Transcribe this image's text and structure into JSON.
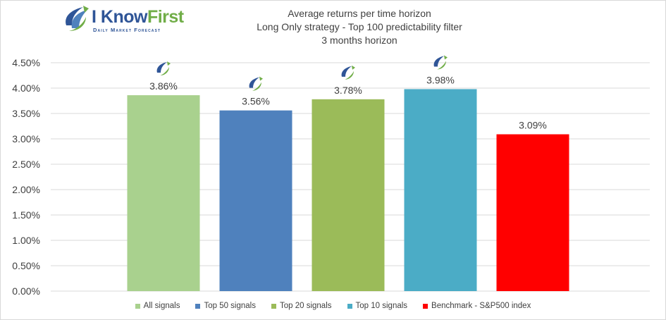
{
  "logo": {
    "text_a": "I Know",
    "text_b": "First",
    "tagline": "Daily Market Forecast"
  },
  "chart_data": {
    "type": "bar",
    "title": "Average returns per time horizon",
    "subtitle": "Long Only strategy - Top 100 predictability filter",
    "subtitle2": "3 months horizon",
    "categories": [
      "All signals",
      "Top 50 signals",
      "Top 20 signals",
      "Top 10 signals",
      "Benchmark - S&P500 index"
    ],
    "values": [
      3.86,
      3.56,
      3.78,
      3.98,
      3.09
    ],
    "value_labels": [
      "3.86%",
      "3.56%",
      "3.78%",
      "3.98%",
      "3.09%"
    ],
    "colors": [
      "#a9d18e",
      "#4f81bd",
      "#9bbb59",
      "#4bacc6",
      "#ff0000"
    ],
    "ylim": [
      0,
      4.5
    ],
    "yticks": [
      "0.00%",
      "0.50%",
      "1.00%",
      "1.50%",
      "2.00%",
      "2.50%",
      "3.00%",
      "3.50%",
      "4.00%",
      "4.50%"
    ],
    "ytick_values": [
      0,
      0.5,
      1.0,
      1.5,
      2.0,
      2.5,
      3.0,
      3.5,
      4.0,
      4.5
    ],
    "logo_marker_on": [
      true,
      true,
      true,
      true,
      false
    ],
    "grid": true,
    "legend_position": "bottom"
  }
}
